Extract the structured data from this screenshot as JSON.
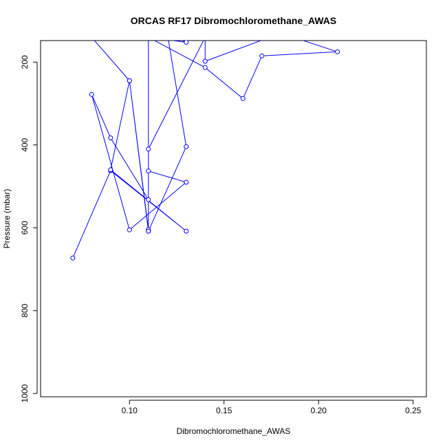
{
  "chart_data": {
    "type": "line",
    "title": "ORCAS RF17 Dibromochloromethane_AWAS",
    "xlabel": "Dibromochloromethane_AWAS",
    "ylabel": "Pressure (mbar)",
    "xlim": [
      0.053,
      0.257
    ],
    "ylim": [
      1008,
      148
    ],
    "y_inverted": true,
    "x_ticks": [
      0.1,
      0.15,
      0.2,
      0.25
    ],
    "x_tick_labels": [
      "0.10",
      "0.15",
      "0.20",
      "0.25"
    ],
    "y_ticks": [
      200,
      400,
      600,
      800,
      1000
    ],
    "y_tick_labels": [
      "200",
      "400",
      "600",
      "800",
      "1000"
    ],
    "grid": false,
    "series": [
      {
        "color": "#0000ff",
        "x": [
          0.07,
          0.09,
          0.13,
          0.09,
          0.1,
          0.11,
          0.11,
          0.1,
          0.08,
          0.11,
          0.13,
          0.12,
          0.13,
          0.11,
          0.11,
          0.14,
          0.16,
          0.17,
          0.21,
          0.18,
          0.14,
          0.14,
          0.11,
          0.11,
          0.13,
          0.1,
          0.08,
          0.09,
          0.11
        ],
        "y": [
          673,
          462,
          608,
          460,
          245,
          608,
          604,
          245,
          140,
          140,
          152,
          131,
          404,
          608,
          140,
          213,
          288,
          185,
          175,
          130,
          198,
          140,
          410,
          463,
          490,
          605,
          278,
          383,
          532
        ]
      }
    ]
  }
}
